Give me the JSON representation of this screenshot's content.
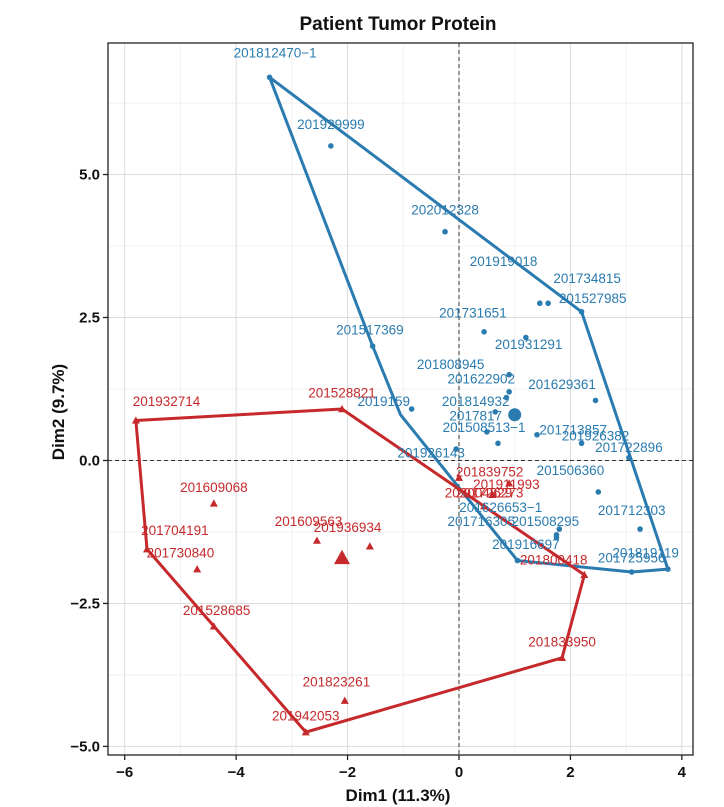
{
  "chart_data": {
    "type": "scatter",
    "title": "Patient Tumor Protein",
    "xlabel": "Dim1 (11.3%)",
    "ylabel": "Dim2 (9.7%)",
    "xlim": [
      -6.3,
      4.2
    ],
    "ylim": [
      -5.15,
      7.3
    ],
    "xticks": [
      -6,
      -4,
      -2,
      0,
      2,
      4
    ],
    "xtick_labels": [
      "−6",
      "−4",
      "−2",
      "0",
      "2",
      "4"
    ],
    "yticks": [
      -5,
      -2.5,
      0,
      2.5,
      5
    ],
    "ytick_labels": [
      "−5.0",
      "−2.5",
      "0.0",
      "2.5",
      "5.0"
    ],
    "grid": true,
    "legend": "none",
    "series": [
      {
        "color": "#2a7bb0",
        "marker": "circle",
        "centroid": [
          1.0,
          0.8
        ],
        "hull": [
          [
            -3.4,
            6.7
          ],
          [
            2.2,
            2.6
          ],
          [
            3.75,
            -1.9
          ],
          [
            3.1,
            -1.95
          ],
          [
            1.05,
            -1.75
          ],
          [
            -1.05,
            0.8
          ],
          [
            -1.55,
            2.0
          ]
        ],
        "points": [
          {
            "x": -3.4,
            "y": 6.7,
            "label": "201812470−1",
            "lx": -3.3,
            "ly": 7.05
          },
          {
            "x": -2.3,
            "y": 5.5,
            "label": "201929999",
            "lx": -2.3,
            "ly": 5.8
          },
          {
            "x": -0.25,
            "y": 4.0,
            "label": "202012328",
            "lx": -0.25,
            "ly": 4.3
          },
          {
            "x": 1.45,
            "y": 2.75,
            "label": "201919018",
            "lx": 0.8,
            "ly": 3.4
          },
          {
            "x": 1.6,
            "y": 2.75,
            "label": "201734815",
            "lx": 2.3,
            "ly": 3.1
          },
          {
            "x": 2.2,
            "y": 2.6,
            "label": "201527985",
            "lx": 2.4,
            "ly": 2.75
          },
          {
            "x": 0.45,
            "y": 2.25,
            "label": "201731651",
            "lx": 0.25,
            "ly": 2.5
          },
          {
            "x": 1.2,
            "y": 2.15,
            "label": "201931291",
            "lx": 1.25,
            "ly": 1.95
          },
          {
            "x": -1.55,
            "y": 2.0,
            "label": "201517369",
            "lx": -1.6,
            "ly": 2.2
          },
          {
            "x": 0.9,
            "y": 1.5,
            "label": "201808945",
            "lx": -0.15,
            "ly": 1.6
          },
          {
            "x": 0.9,
            "y": 1.2,
            "label": "201622902",
            "lx": 0.4,
            "ly": 1.35
          },
          {
            "x": 2.45,
            "y": 1.05,
            "label": "201629361",
            "lx": 1.85,
            "ly": 1.25
          },
          {
            "x": 0.85,
            "y": 1.1,
            "label": "201814932",
            "lx": 0.3,
            "ly": 0.95
          },
          {
            "x": -0.85,
            "y": 0.9,
            "label": "2019159",
            "lx": -1.35,
            "ly": 0.95
          },
          {
            "x": 0.65,
            "y": 0.85,
            "label": "2017817",
            "lx": 0.3,
            "ly": 0.7
          },
          {
            "x": 1.0,
            "y": 0.8,
            "label": "",
            "lx": 0,
            "ly": 0
          },
          {
            "x": 0.5,
            "y": 0.5,
            "label": "201508513−1",
            "lx": 0.45,
            "ly": 0.5
          },
          {
            "x": 1.4,
            "y": 0.45,
            "label": "201713857",
            "lx": 2.05,
            "ly": 0.45
          },
          {
            "x": 2.2,
            "y": 0.3,
            "label": "201926382",
            "lx": 2.45,
            "ly": 0.35
          },
          {
            "x": 0.7,
            "y": 0.3,
            "label": "",
            "lx": 0,
            "ly": 0
          },
          {
            "x": 3.05,
            "y": 0.05,
            "label": "201722896",
            "lx": 3.05,
            "ly": 0.15
          },
          {
            "x": -0.05,
            "y": 0.2,
            "label": "201926143",
            "lx": -0.5,
            "ly": 0.05
          },
          {
            "x": 2.5,
            "y": -0.55,
            "label": "201506360",
            "lx": 2.0,
            "ly": -0.25
          },
          {
            "x": 1.75,
            "y": -1.35,
            "label": "201626653−1",
            "lx": 0.75,
            "ly": -0.9
          },
          {
            "x": 3.25,
            "y": -1.2,
            "label": "201712303",
            "lx": 3.1,
            "ly": -0.95
          },
          {
            "x": 1.8,
            "y": -1.2,
            "label": "201716305",
            "lx": 0.4,
            "ly": -1.15
          },
          {
            "x": 1.75,
            "y": -1.3,
            "label": "201508295",
            "lx": 1.55,
            "ly": -1.15
          },
          {
            "x": 1.05,
            "y": -1.75,
            "label": "201916697",
            "lx": 1.2,
            "ly": -1.55
          },
          {
            "x": 3.1,
            "y": -1.95,
            "label": "201819119",
            "lx": 3.35,
            "ly": -1.7
          },
          {
            "x": 3.75,
            "y": -1.9,
            "label": "201725956",
            "lx": 3.1,
            "ly": -1.78
          }
        ]
      },
      {
        "color": "#c6292b",
        "marker": "triangle",
        "centroid": [
          -2.1,
          -1.7
        ],
        "hull": [
          [
            -5.8,
            0.7
          ],
          [
            -2.1,
            0.9
          ],
          [
            2.25,
            -2.0
          ],
          [
            1.85,
            -3.45
          ],
          [
            -2.75,
            -4.75
          ],
          [
            -5.6,
            -1.55
          ]
        ],
        "points": [
          {
            "x": -5.8,
            "y": 0.7,
            "label": "201932714",
            "lx": -5.25,
            "ly": 0.95
          },
          {
            "x": -2.1,
            "y": 0.9,
            "label": "201528821",
            "lx": -2.1,
            "ly": 1.1
          },
          {
            "x": -4.4,
            "y": -0.75,
            "label": "201609068",
            "lx": -4.4,
            "ly": -0.55
          },
          {
            "x": 0.0,
            "y": -0.3,
            "label": "201839752",
            "lx": 0.55,
            "ly": -0.28
          },
          {
            "x": 0.9,
            "y": -0.4,
            "label": "201911993",
            "lx": 0.85,
            "ly": -0.5
          },
          {
            "x": 0.6,
            "y": -0.6,
            "label": "202004829",
            "lx": 0.35,
            "ly": -0.65
          },
          {
            "x": 0.45,
            "y": -0.8,
            "label": "201726273",
            "lx": 0.55,
            "ly": -0.65
          },
          {
            "x": -5.6,
            "y": -1.55,
            "label": "201704191",
            "lx": -5.1,
            "ly": -1.3
          },
          {
            "x": -2.55,
            "y": -1.4,
            "label": "201609563",
            "lx": -2.7,
            "ly": -1.15
          },
          {
            "x": -1.6,
            "y": -1.5,
            "label": "201936934",
            "lx": -2.0,
            "ly": -1.25
          },
          {
            "x": -4.7,
            "y": -1.9,
            "label": "201730840",
            "lx": -5.0,
            "ly": -1.7
          },
          {
            "x": 2.25,
            "y": -2.0,
            "label": "201800418",
            "lx": 1.7,
            "ly": -1.82
          },
          {
            "x": -4.4,
            "y": -2.9,
            "label": "201528685",
            "lx": -4.35,
            "ly": -2.7
          },
          {
            "x": 1.85,
            "y": -3.45,
            "label": "201833950",
            "lx": 1.85,
            "ly": -3.25
          },
          {
            "x": -2.05,
            "y": -4.2,
            "label": "201823261",
            "lx": -2.2,
            "ly": -3.95
          },
          {
            "x": -2.75,
            "y": -4.75,
            "label": "201942053",
            "lx": -2.75,
            "ly": -4.55
          }
        ]
      }
    ]
  }
}
